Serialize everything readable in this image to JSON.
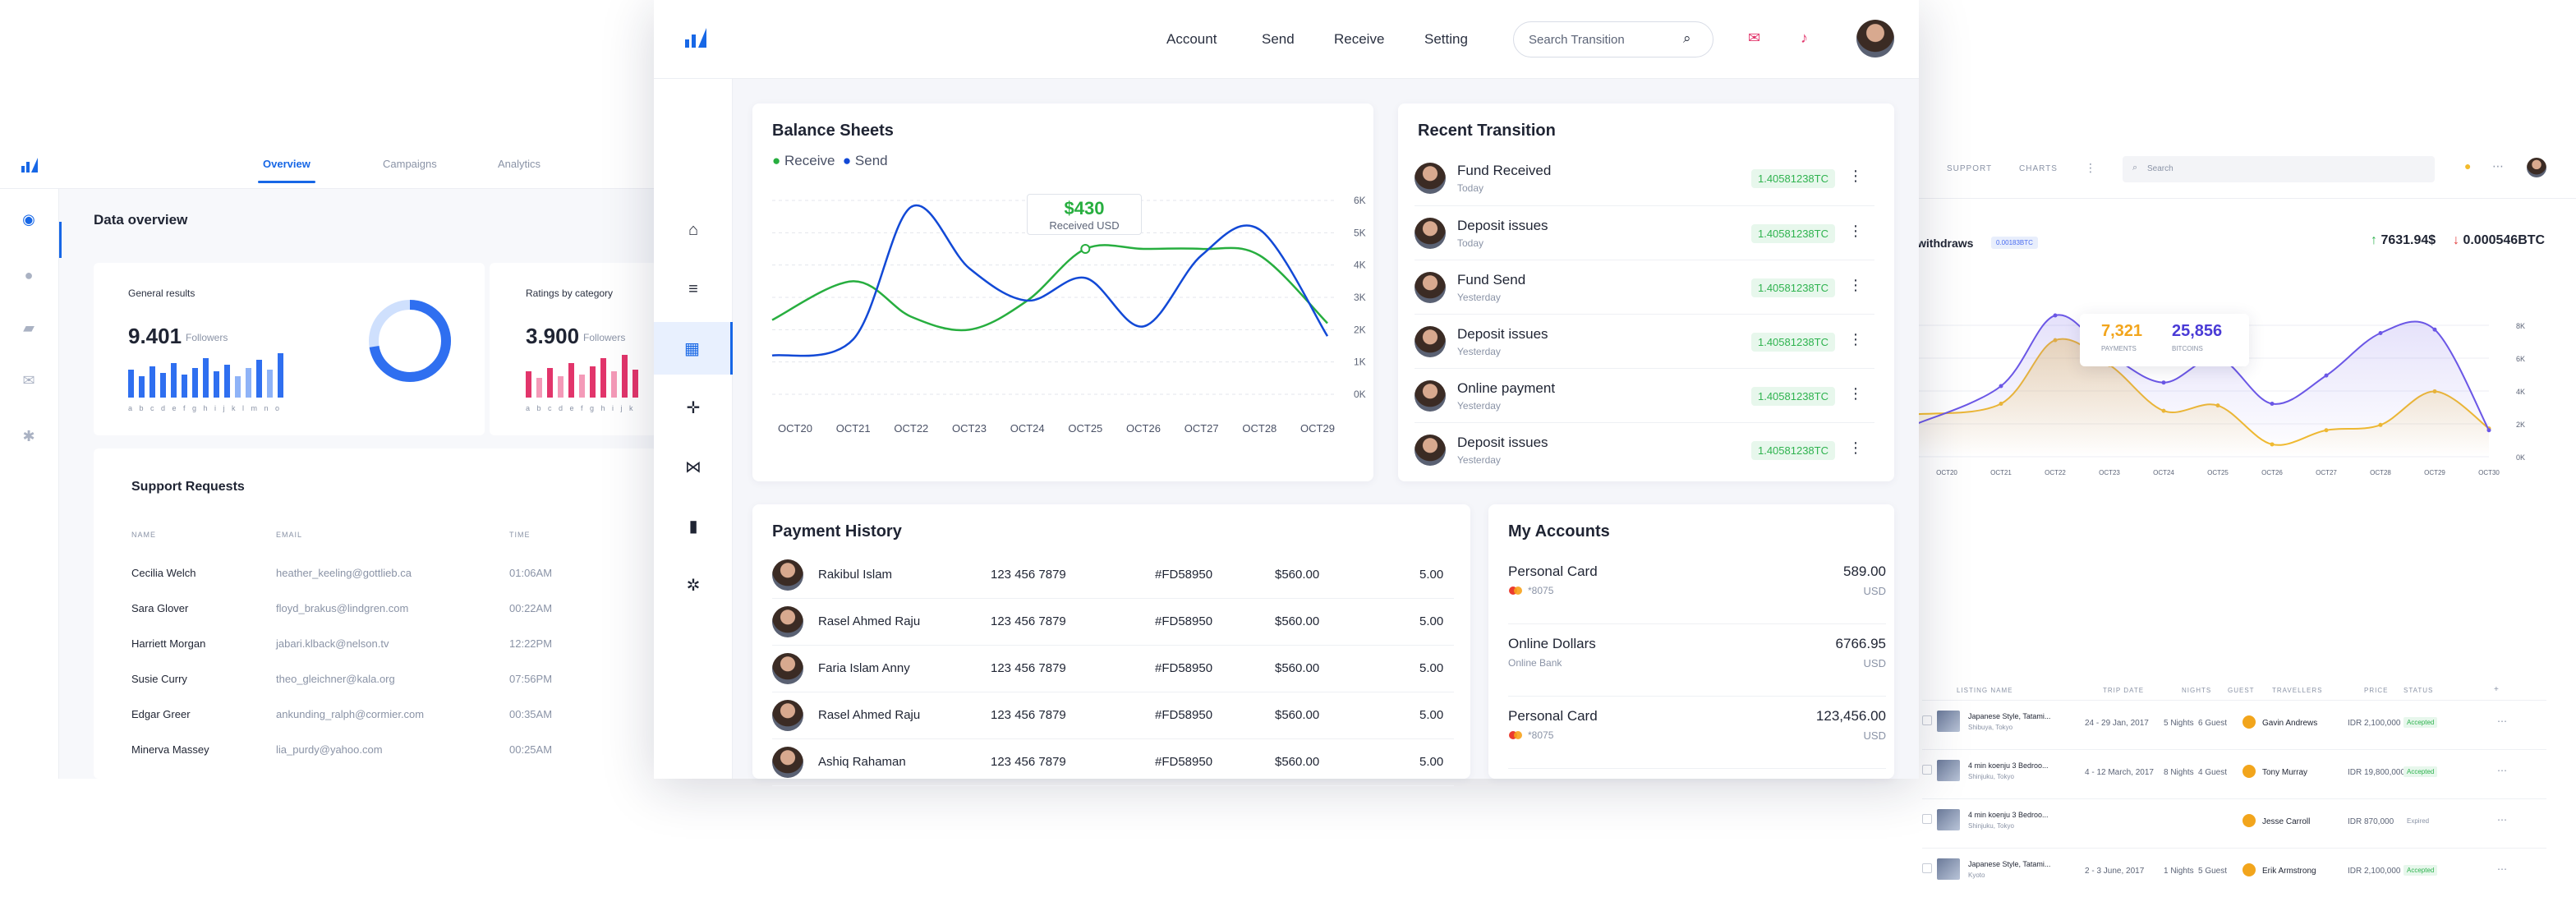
{
  "left": {
    "tabs": [
      "Overview",
      "Campaigns",
      "Analytics"
    ],
    "title": "Data overview",
    "general": {
      "label": "General results",
      "value": "9.401",
      "unit": "Followers",
      "ticks": "a b c d e f g h i j k l m n o"
    },
    "ratings": {
      "label": "Ratings by category",
      "value": "3.900",
      "unit": "Followers",
      "ticks": "a b c d e f g h i j k"
    },
    "support": {
      "title": "Support Requests",
      "headers": [
        "NAME",
        "EMAIL",
        "TIME"
      ],
      "rows": [
        {
          "name": "Cecilia Welch",
          "email": "heather_keeling@gottlieb.ca",
          "time": "01:06AM"
        },
        {
          "name": "Sara Glover",
          "email": "floyd_brakus@lindgren.com",
          "time": "00:22AM"
        },
        {
          "name": "Harriett Morgan",
          "email": "jabari.klback@nelson.tv",
          "time": "12:22PM"
        },
        {
          "name": "Susie Curry",
          "email": "theo_gleichner@kala.org",
          "time": "07:56PM"
        },
        {
          "name": "Edgar Greer",
          "email": "ankunding_ralph@cormier.com",
          "time": "00:35AM"
        },
        {
          "name": "Minerva Massey",
          "email": "lia_purdy@yahoo.com",
          "time": "00:25AM"
        }
      ]
    }
  },
  "right": {
    "nav": [
      "SUPPORT",
      "CHARTS"
    ],
    "search_placeholder": "Search",
    "withdraws_label": "withdraws",
    "withdraws_badge": "0.00183BTC",
    "stat_up": "7631.94$",
    "stat_down": "0.000546BTC",
    "tooltip": {
      "left_value": "7,321",
      "left_label": "PAYMENTS",
      "right_value": "25,856",
      "right_label": "BITCOINS"
    },
    "y_ticks": [
      "8K",
      "6K",
      "4K",
      "2K",
      "0K"
    ],
    "x_ticks": [
      "OCT20",
      "OCT21",
      "OCT22",
      "OCT23",
      "OCT24",
      "OCT25",
      "OCT26",
      "OCT27",
      "OCT28",
      "OCT29",
      "OCT30"
    ],
    "table_headers": [
      "LISTING NAME",
      "TRIP DATE",
      "NIGHTS",
      "GUEST",
      "TRAVELLERS",
      "PRICE",
      "STATUS"
    ],
    "rows": [
      {
        "name": "Japanese Style, Tatami...",
        "loc": "Shibuya, Tokyo",
        "date": "24 - 29 Jan, 2017",
        "nights": "5 Nights",
        "guest": "6 Guest",
        "traveller": "Gavin Andrews",
        "price": "IDR 2,100,000",
        "status": "Accepted"
      },
      {
        "name": "4 min koenju 3 Bedroo...",
        "loc": "Shinjuku, Tokyo",
        "date": "4 - 12 March, 2017",
        "nights": "8 Nights",
        "guest": "4 Guest",
        "traveller": "Tony Murray",
        "price": "IDR 19,800,000",
        "status": "Accepted"
      },
      {
        "name": "4 min koenju 3 Bedroo...",
        "loc": "Shinjuku, Tokyo",
        "date": "",
        "nights": "",
        "guest": "",
        "traveller": "Jesse Carroll",
        "price": "IDR 870,000",
        "status": "Expired"
      },
      {
        "name": "Japanese Style, Tatami...",
        "loc": "Kyoto",
        "date": "2 - 3 June, 2017",
        "nights": "1 Nights",
        "guest": "5 Guest",
        "traveller": "Erik Armstrong",
        "price": "IDR 2,100,000",
        "status": "Accepted"
      }
    ]
  },
  "center": {
    "nav": [
      "Account",
      "Send",
      "Receive",
      "Setting"
    ],
    "search_placeholder": "Search Transition",
    "balance": {
      "title": "Balance Sheets",
      "legend": [
        "Receive",
        "Send"
      ],
      "tooltip_value": "$430",
      "tooltip_label": "Received USD"
    },
    "recent": {
      "title": "Recent Transition",
      "rows": [
        {
          "title": "Fund Received",
          "when": "Today",
          "amount": "1.40581238TC"
        },
        {
          "title": "Deposit issues",
          "when": "Today",
          "amount": "1.40581238TC"
        },
        {
          "title": "Fund Send",
          "when": "Yesterday",
          "amount": "1.40581238TC"
        },
        {
          "title": "Deposit issues",
          "when": "Yesterday",
          "amount": "1.40581238TC"
        },
        {
          "title": "Online payment",
          "when": "Yesterday",
          "amount": "1.40581238TC"
        },
        {
          "title": "Deposit issues",
          "when": "Yesterday",
          "amount": "1.40581238TC"
        }
      ]
    },
    "payment": {
      "title": "Payment History",
      "rows": [
        {
          "name": "Rakibul Islam",
          "phone": "123 456 7879",
          "id": "#FD58950",
          "amount": "$560.00",
          "fee": "5.00"
        },
        {
          "name": "Rasel Ahmed Raju",
          "phone": "123 456 7879",
          "id": "#FD58950",
          "amount": "$560.00",
          "fee": "5.00"
        },
        {
          "name": "Faria Islam Anny",
          "phone": "123 456 7879",
          "id": "#FD58950",
          "amount": "$560.00",
          "fee": "5.00"
        },
        {
          "name": "Rasel Ahmed Raju",
          "phone": "123 456 7879",
          "id": "#FD58950",
          "amount": "$560.00",
          "fee": "5.00"
        },
        {
          "name": "Ashiq Rahaman",
          "phone": "123 456 7879",
          "id": "#FD58950",
          "amount": "$560.00",
          "fee": "5.00"
        }
      ]
    },
    "accounts": {
      "title": "My Accounts",
      "rows": [
        {
          "name": "Personal Card",
          "sub": "*8075",
          "amount": "589.00",
          "currency": "USD"
        },
        {
          "name": "Online Dollars",
          "sub": "Online Bank",
          "amount": "6766.95",
          "currency": "USD"
        },
        {
          "name": "Personal Card",
          "sub": "*8075",
          "amount": "123,456.00",
          "currency": "USD"
        }
      ]
    }
  },
  "chart_data": [
    {
      "type": "line",
      "title": "Balance Sheets",
      "categories": [
        "OCT20",
        "OCT21",
        "OCT22",
        "OCT23",
        "OCT24",
        "OCT25",
        "OCT26",
        "OCT27",
        "OCT28",
        "OCT29"
      ],
      "y_ticks": [
        "6K",
        "5K",
        "4K",
        "3K",
        "2K",
        "1K",
        "0K"
      ],
      "ylim": [
        0,
        6000
      ],
      "series": [
        {
          "name": "Receive",
          "color": "#27ae3f",
          "values": [
            2300,
            3500,
            2400,
            2000,
            2900,
            4500,
            4500,
            4500,
            4300,
            2200
          ]
        },
        {
          "name": "Send",
          "color": "#1249d6",
          "values": [
            1200,
            1700,
            5800,
            3900,
            2900,
            3600,
            2100,
            4300,
            5100,
            1800
          ]
        }
      ]
    },
    {
      "type": "area",
      "categories": [
        "OCT20",
        "OCT21",
        "OCT22",
        "OCT23",
        "OCT24",
        "OCT25",
        "OCT26",
        "OCT27",
        "OCT28",
        "OCT29",
        "OCT30"
      ],
      "y_ticks": [
        "8K",
        "6K",
        "4K",
        "2K",
        "0K"
      ],
      "ylim": [
        0,
        8000
      ],
      "series": [
        {
          "name": "PAYMENTS",
          "color": "#f2bb2c",
          "values": [
            2400,
            3000,
            6600,
            5200,
            2600,
            2900,
            700,
            1500,
            1800,
            3700,
            1600
          ]
        },
        {
          "name": "BITCOINS",
          "color": "#6b57e6",
          "values": [
            1800,
            4000,
            8000,
            5800,
            4200,
            5600,
            3000,
            4600,
            7000,
            7200,
            1500
          ]
        }
      ]
    }
  ]
}
